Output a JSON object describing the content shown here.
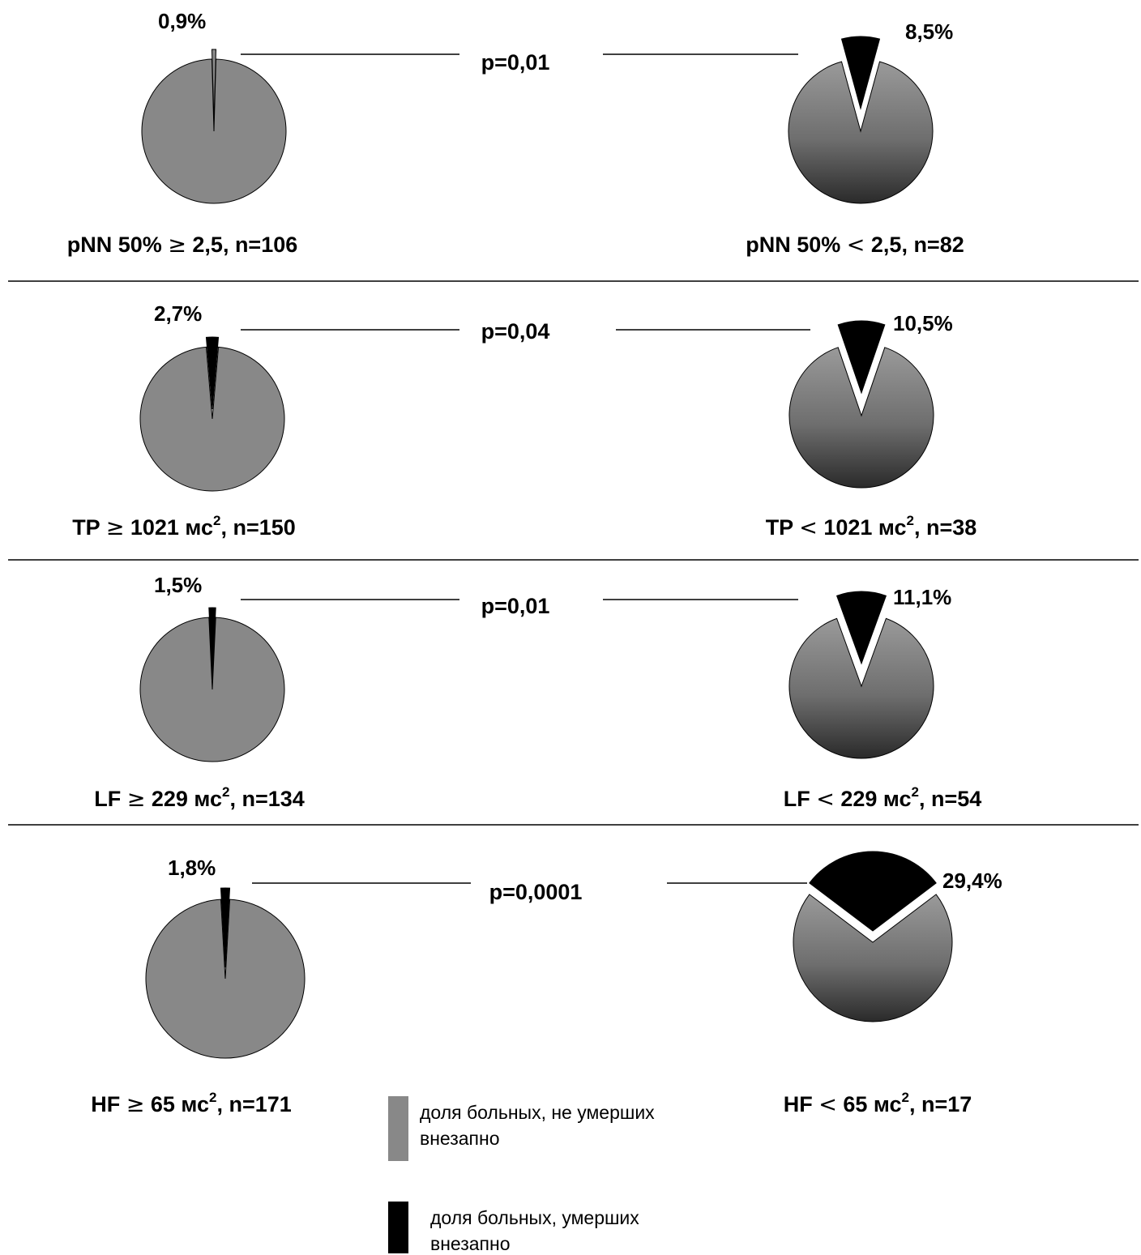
{
  "chart_data": {
    "type": "pie",
    "colors": {
      "survived": "#888888",
      "sudden_death": "#000000"
    },
    "legend": {
      "placement": "bottom-center",
      "entries": [
        {
          "key": "survived",
          "line1": "доля больных, не умерших",
          "line2": "внезапно"
        },
        {
          "key": "sudden_death",
          "line1": "доля больных, умерших",
          "line2": "внезапно"
        }
      ]
    },
    "rows": [
      {
        "p_value": "p=0,01",
        "left": {
          "param": "pNN 50% ",
          "sym": "≥",
          "rest": " 2,5, n=106",
          "sup": "",
          "rest2": "",
          "value": 0.9,
          "pct": "0,9%",
          "survived": 99.1
        },
        "right": {
          "param": "pNN 50% ",
          "sym": "<",
          "rest": " 2,5, n=82",
          "sup": "",
          "rest2": "",
          "value": 8.5,
          "pct": "8,5%",
          "survived": 91.5
        }
      },
      {
        "p_value": "p=0,04",
        "left": {
          "param": "TP ",
          "sym": "≥",
          "rest": " 1021 мс",
          "sup": "2",
          "rest2": ", n=150",
          "value": 2.7,
          "pct": "2,7%",
          "survived": 97.3
        },
        "right": {
          "param": "TP ",
          "sym": "<",
          "rest": " 1021 мс",
          "sup": "2",
          "rest2": ", n=38",
          "value": 10.5,
          "pct": "10,5%",
          "survived": 89.5
        }
      },
      {
        "p_value": "p=0,01",
        "left": {
          "param": "LF ",
          "sym": "≥",
          "rest": " 229 мс",
          "sup": "2",
          "rest2": ", n=134",
          "value": 1.5,
          "pct": "1,5%",
          "survived": 98.5
        },
        "right": {
          "param": "LF ",
          "sym": "<",
          "rest": " 229 мс",
          "sup": "2",
          "rest2": ", n=54",
          "value": 11.1,
          "pct": "11,1%",
          "survived": 88.9
        }
      },
      {
        "p_value": "p=0,0001",
        "left": {
          "param": "HF ",
          "sym": "≥",
          "rest": " 65 мс",
          "sup": "2",
          "rest2": ", n=171",
          "value": 1.8,
          "pct": "1,8%",
          "survived": 98.2
        },
        "right": {
          "param": "HF ",
          "sym": "<",
          "rest": " 65 мс",
          "sup": "2",
          "rest2": ", n=17",
          "value": 29.4,
          "pct": "29,4%",
          "survived": 70.6
        }
      }
    ]
  }
}
